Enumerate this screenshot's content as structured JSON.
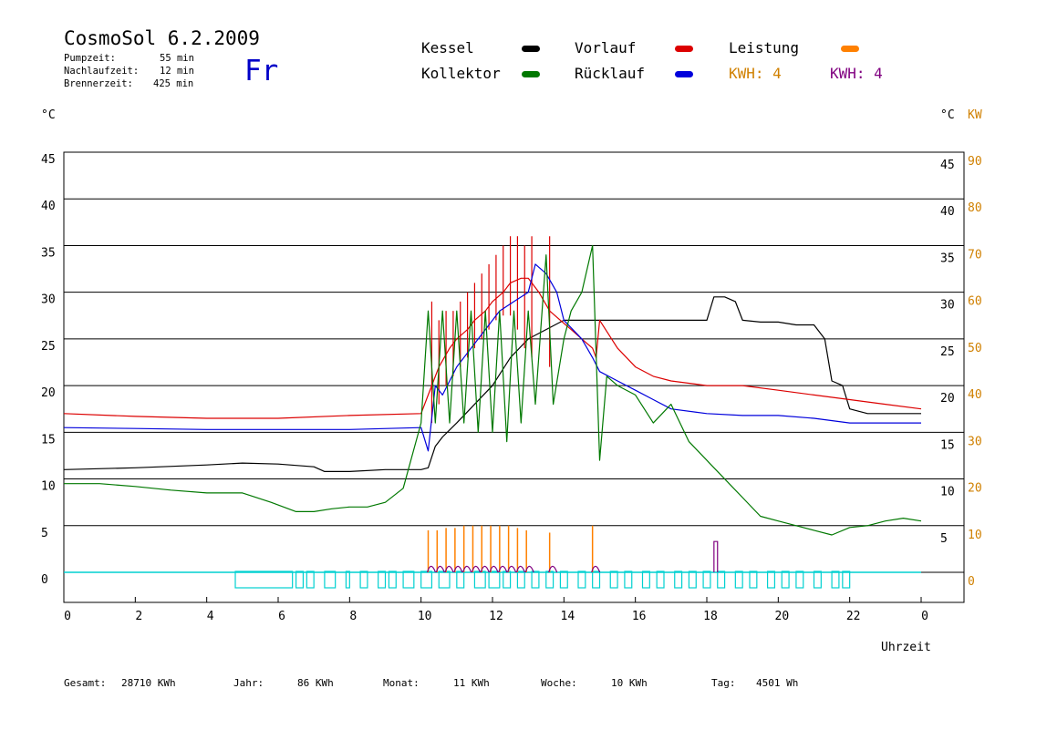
{
  "header": {
    "title": "CosmoSol 6.2.2009",
    "day": "Fr",
    "stats": [
      {
        "label": "Pumpzeit:",
        "value": "55 min"
      },
      {
        "label": "Nachlaufzeit:",
        "value": "12 min"
      },
      {
        "label": "Brennerzeit:",
        "value": "425 min"
      }
    ]
  },
  "legend": {
    "kessel": "Kessel",
    "kollektor": "Kollektor",
    "vorlauf": "Vorlauf",
    "ruecklauf": "Rücklauf",
    "leistung": "Leistung",
    "kwh1": "KWH: 4",
    "kwh2": "KWH: 4"
  },
  "colors": {
    "kessel": "#000000",
    "kollektor": "#007800",
    "vorlauf": "#dc0000",
    "ruecklauf": "#0000dc",
    "leistung": "#ff8000",
    "leistung2": "#800080",
    "pump": "#00d0d0"
  },
  "footer": [
    {
      "label": "Gesamt:",
      "value": "28710 KWh"
    },
    {
      "label": "Jahr:",
      "value": "86 KWh"
    },
    {
      "label": "Monat:",
      "value": "11 KWh"
    },
    {
      "label": "Woche:",
      "value": "10 KWh"
    },
    {
      "label": "Tag:",
      "value": "4501 Wh"
    }
  ],
  "chart_data": {
    "type": "line",
    "xlabel": "Uhrzeit",
    "ylabel_left": "°C",
    "ylabel_right": "°C",
    "ylabel_right2": "KW",
    "xlim": [
      0,
      24
    ],
    "ylim": [
      0,
      45
    ],
    "ylim_right2": [
      0,
      90
    ],
    "x_ticks": [
      "0",
      "2",
      "4",
      "6",
      "8",
      "10",
      "12",
      "14",
      "16",
      "18",
      "20",
      "22",
      "0"
    ],
    "y_ticks_left": [
      "45",
      "40",
      "35",
      "30",
      "25",
      "20",
      "15",
      "10",
      "5",
      "0"
    ],
    "y_ticks_right": [
      "45",
      "40",
      "35",
      "30",
      "25",
      "20",
      "15",
      "10",
      "5"
    ],
    "y_ticks_right2": [
      "90",
      "80",
      "70",
      "60",
      "50",
      "40",
      "30",
      "20",
      "10",
      "0"
    ],
    "grid": true,
    "series": [
      {
        "name": "Kessel",
        "color": "#000000",
        "x": [
          0,
          2,
          4,
          5,
          6,
          7,
          7.3,
          8,
          9,
          10,
          10.2,
          10.4,
          10.6,
          11,
          11.5,
          12,
          12.5,
          13,
          13.5,
          14,
          15,
          16,
          17,
          18,
          18.2,
          18.5,
          18.8,
          19,
          19.5,
          20,
          20.5,
          21,
          21.3,
          21.5,
          21.8,
          22,
          22.5,
          23,
          24
        ],
        "y": [
          11,
          11.2,
          11.5,
          11.7,
          11.6,
          11.3,
          10.8,
          10.8,
          11,
          11,
          11.2,
          13.5,
          14.5,
          16,
          18,
          20,
          23,
          25,
          26,
          27,
          27,
          27,
          27,
          27,
          29.5,
          29.5,
          29,
          27,
          26.8,
          26.8,
          26.5,
          26.5,
          25,
          20.5,
          20,
          17.5,
          17,
          17,
          17
        ]
      },
      {
        "name": "Vorlauf",
        "color": "#dc0000",
        "x": [
          0,
          2,
          4,
          6,
          8,
          10,
          10.3,
          10.5,
          10.8,
          11,
          11.3,
          11.5,
          11.8,
          12,
          12.3,
          12.5,
          12.8,
          13,
          13.3,
          13.6,
          13.9,
          14.2,
          14.5,
          14.8,
          14.9,
          15,
          15.5,
          16,
          16.5,
          17,
          18,
          19,
          20,
          21,
          22,
          23,
          24
        ],
        "y": [
          17,
          16.7,
          16.5,
          16.5,
          16.8,
          17,
          20,
          22,
          24,
          25,
          26,
          27,
          28,
          29,
          30,
          31,
          31.5,
          31.5,
          30,
          28,
          27,
          26,
          25,
          24,
          23,
          27,
          24,
          22,
          21,
          20.5,
          20,
          20,
          19.5,
          19,
          18.5,
          18,
          17.5
        ],
        "spikes_x": [
          10.3,
          10.5,
          10.7,
          10.9,
          11.1,
          11.3,
          11.5,
          11.7,
          11.9,
          12.1,
          12.3,
          12.5,
          12.7,
          12.9,
          13.1,
          13.6
        ],
        "spikes_y": [
          29,
          27,
          28,
          28,
          29,
          30,
          31,
          32,
          33,
          34,
          35,
          36,
          36,
          35,
          36,
          36
        ]
      },
      {
        "name": "Rücklauf",
        "color": "#0000dc",
        "x": [
          0,
          2,
          4,
          6,
          8,
          10,
          10.2,
          10.4,
          10.6,
          11,
          11.4,
          11.8,
          12.2,
          12.6,
          13,
          13.2,
          13.5,
          13.8,
          14,
          14.5,
          14.8,
          15,
          15.5,
          16,
          16.5,
          17,
          18,
          19,
          20,
          21,
          22,
          23,
          24
        ],
        "y": [
          15.5,
          15.4,
          15.3,
          15.3,
          15.3,
          15.5,
          13,
          20,
          19,
          22,
          24,
          26,
          28,
          29,
          30,
          33,
          32,
          30,
          27,
          25,
          23,
          21.5,
          20.5,
          19.5,
          18.5,
          17.5,
          17,
          16.8,
          16.8,
          16.5,
          16,
          16,
          16
        ]
      },
      {
        "name": "Kollektor",
        "color": "#007800",
        "x": [
          0,
          1,
          2,
          3,
          4,
          5,
          5.8,
          6.5,
          7,
          7.5,
          8,
          8.5,
          9,
          9.5,
          10,
          10.2,
          10.4,
          10.6,
          10.8,
          11,
          11.2,
          11.4,
          11.6,
          11.8,
          12,
          12.2,
          12.4,
          12.6,
          12.8,
          13,
          13.2,
          13.5,
          13.7,
          14,
          14.2,
          14.5,
          14.8,
          15,
          15.2,
          15.5,
          16,
          16.5,
          17,
          17.5,
          18,
          18.5,
          19,
          19.5,
          20,
          20.5,
          21,
          21.5,
          22,
          22.5,
          23,
          23.5,
          24
        ],
        "y": [
          9.5,
          9.5,
          9.2,
          8.8,
          8.5,
          8.5,
          7.5,
          6.5,
          6.5,
          6.8,
          7,
          7,
          7.5,
          9,
          16,
          28,
          16,
          28,
          16,
          28,
          16,
          28,
          15,
          28,
          15,
          28,
          14,
          28,
          16,
          28,
          18,
          34,
          18,
          25,
          28,
          30,
          35,
          12,
          21,
          20,
          19,
          16,
          18,
          14,
          12,
          10,
          8,
          6,
          5.5,
          5,
          4.5,
          4,
          4.8,
          5,
          5.5,
          5.8,
          5.5
        ]
      }
    ],
    "leistung": {
      "name": "Leistung",
      "color": "#ff8000",
      "x": [
        10.2,
        10.45,
        10.7,
        10.95,
        11.2,
        11.45,
        11.7,
        11.95,
        12.2,
        12.45,
        12.7,
        12.95,
        13.6,
        14.8
      ],
      "y": [
        9,
        9,
        9.5,
        9.5,
        10,
        10,
        10,
        10,
        10,
        10,
        9.5,
        9,
        8.5,
        10
      ]
    },
    "pump_blocks": [
      [
        4.8,
        6.4
      ],
      [
        6.5,
        6.7
      ],
      [
        6.8,
        7.0
      ],
      [
        7.3,
        7.6
      ],
      [
        7.9,
        8.0
      ],
      [
        8.3,
        8.5
      ],
      [
        8.8,
        9.0
      ],
      [
        9.1,
        9.3
      ],
      [
        9.5,
        9.8
      ],
      [
        10.0,
        10.3
      ],
      [
        10.5,
        10.8
      ],
      [
        11.0,
        11.2
      ],
      [
        11.5,
        11.8
      ],
      [
        11.9,
        12.2
      ],
      [
        12.3,
        12.5
      ],
      [
        12.7,
        12.9
      ],
      [
        13.1,
        13.3
      ],
      [
        13.5,
        13.7
      ],
      [
        13.9,
        14.1
      ],
      [
        14.4,
        14.6
      ],
      [
        14.8,
        15.0
      ],
      [
        15.3,
        15.5
      ],
      [
        15.7,
        15.9
      ],
      [
        16.2,
        16.4
      ],
      [
        16.6,
        16.8
      ],
      [
        17.1,
        17.3
      ],
      [
        17.5,
        17.7
      ],
      [
        17.9,
        18.1
      ],
      [
        18.3,
        18.5
      ],
      [
        18.8,
        19.0
      ],
      [
        19.2,
        19.4
      ],
      [
        19.7,
        19.9
      ],
      [
        20.1,
        20.3
      ],
      [
        20.5,
        20.7
      ],
      [
        21.0,
        21.2
      ],
      [
        21.5,
        21.7
      ],
      [
        21.8,
        22.0
      ]
    ]
  }
}
